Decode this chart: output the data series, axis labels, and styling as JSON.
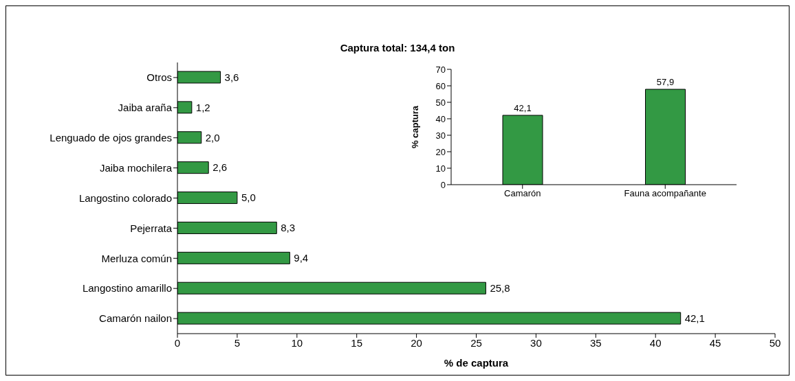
{
  "chart_data": [
    {
      "type": "bar",
      "orientation": "horizontal",
      "title": "Captura total: 134,4 ton",
      "xlabel": "% de captura",
      "categories": [
        "Otros",
        "Jaiba araña",
        "Lenguado de ojos grandes",
        "Jaiba mochilera",
        "Langostino colorado",
        "Pejerrata",
        "Merluza común",
        "Langostino amarillo",
        "Camarón nailon"
      ],
      "values": [
        3.6,
        1.2,
        2.0,
        2.6,
        5.0,
        8.3,
        9.4,
        25.8,
        42.1
      ],
      "value_labels": [
        "3,6",
        "1,2",
        "2,0",
        "2,6",
        "5,0",
        "8,3",
        "9,4",
        "25,8",
        "42,1"
      ],
      "color": "#339944",
      "xlim": [
        0,
        50
      ],
      "xticks": [
        0,
        5,
        10,
        15,
        20,
        25,
        30,
        35,
        40,
        45,
        50
      ]
    },
    {
      "type": "bar",
      "ylabel": "% captura",
      "categories": [
        "Camarón",
        "Fauna acompañante"
      ],
      "values": [
        42.1,
        57.9
      ],
      "value_labels": [
        "42,1",
        "57,9"
      ],
      "color": "#339944",
      "ylim": [
        0,
        70
      ],
      "yticks": [
        0,
        10,
        20,
        30,
        40,
        50,
        60,
        70
      ]
    }
  ]
}
